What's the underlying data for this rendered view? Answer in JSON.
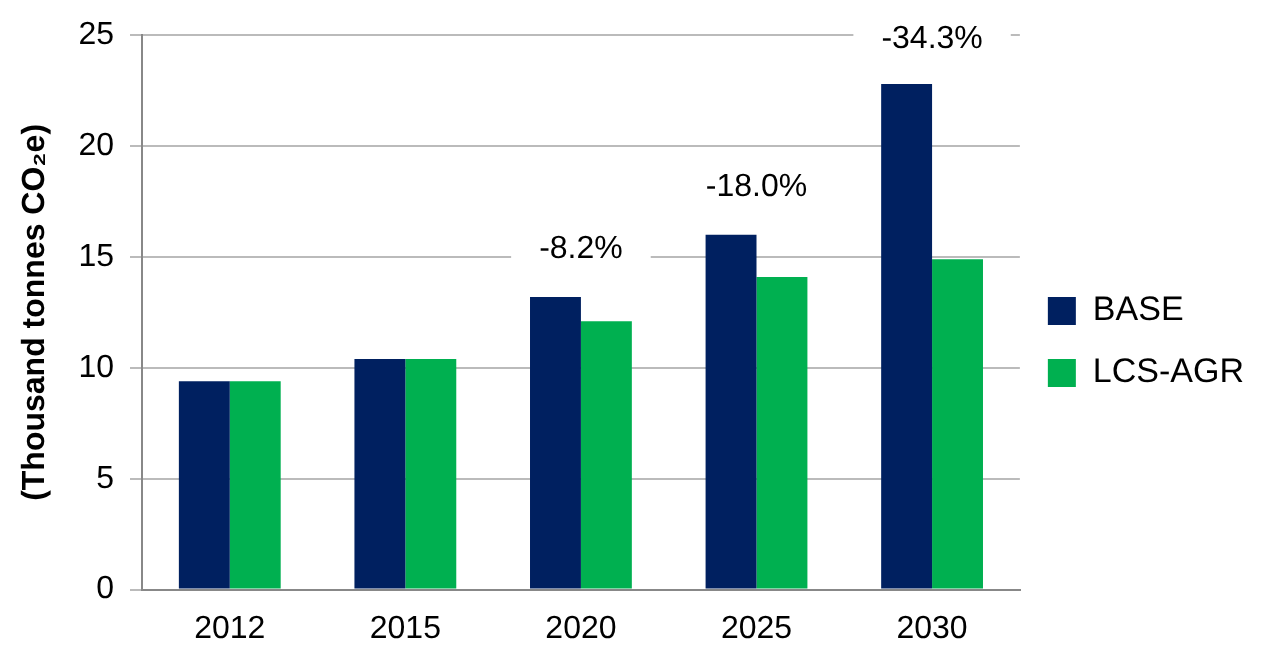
{
  "chart_data": {
    "type": "bar",
    "ylabel": "(Thousand tonnes CO₂e)",
    "categories": [
      "2012",
      "2015",
      "2020",
      "2025",
      "2030"
    ],
    "series": [
      {
        "name": "BASE",
        "color": "#002060",
        "values": [
          9.4,
          10.4,
          13.2,
          16.0,
          22.8
        ]
      },
      {
        "name": "LCS-AGR",
        "color": "#00b050",
        "values": [
          9.4,
          10.4,
          12.1,
          14.1,
          14.9
        ]
      }
    ],
    "ylim": [
      0,
      25
    ],
    "yticks": [
      0,
      5,
      10,
      15,
      20,
      25
    ],
    "grid": "y",
    "legend": "right",
    "annotations": [
      "-8.2%",
      "-18.0%",
      "-34.3%"
    ]
  }
}
